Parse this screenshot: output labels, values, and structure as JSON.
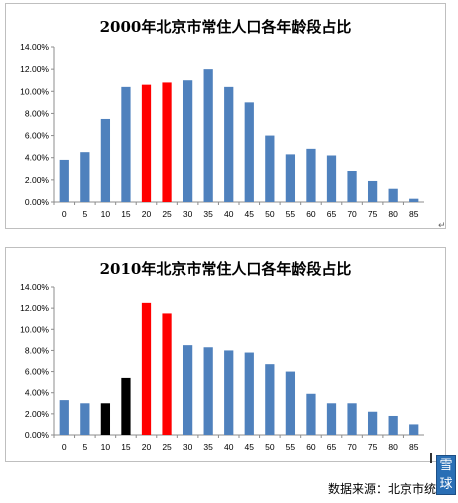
{
  "chart_data": [
    {
      "type": "bar",
      "title": "2000年北京市常住人口各年龄段占比",
      "categories": [
        "0",
        "5",
        "10",
        "15",
        "20",
        "25",
        "30",
        "35",
        "40",
        "45",
        "50",
        "55",
        "60",
        "65",
        "70",
        "75",
        "80",
        "85"
      ],
      "values": [
        3.8,
        4.5,
        7.5,
        10.4,
        10.6,
        10.8,
        11.0,
        12.0,
        10.4,
        9.0,
        6.0,
        4.3,
        4.8,
        4.2,
        2.8,
        1.9,
        1.2,
        0.3
      ],
      "bar_colors": [
        "#4f81bd",
        "#4f81bd",
        "#4f81bd",
        "#4f81bd",
        "#ff0000",
        "#ff0000",
        "#4f81bd",
        "#4f81bd",
        "#4f81bd",
        "#4f81bd",
        "#4f81bd",
        "#4f81bd",
        "#4f81bd",
        "#4f81bd",
        "#4f81bd",
        "#4f81bd",
        "#4f81bd",
        "#4f81bd"
      ],
      "y_ticks": [
        "0.00%",
        "2.00%",
        "4.00%",
        "6.00%",
        "8.00%",
        "10.00%",
        "12.00%",
        "14.00%"
      ],
      "ylim": [
        0,
        14
      ],
      "xlabel": "",
      "ylabel": "",
      "grid": false,
      "legend": "none"
    },
    {
      "type": "bar",
      "title": "2010年北京市常住人口各年龄段占比",
      "categories": [
        "0",
        "5",
        "10",
        "15",
        "20",
        "25",
        "30",
        "35",
        "40",
        "45",
        "50",
        "55",
        "60",
        "65",
        "70",
        "75",
        "80",
        "85"
      ],
      "values": [
        3.3,
        3.0,
        3.0,
        5.4,
        12.5,
        11.5,
        8.5,
        8.3,
        8.0,
        7.8,
        6.7,
        6.0,
        3.9,
        3.0,
        3.0,
        2.2,
        1.8,
        1.0
      ],
      "bar_colors": [
        "#4f81bd",
        "#4f81bd",
        "#000000",
        "#000000",
        "#ff0000",
        "#ff0000",
        "#4f81bd",
        "#4f81bd",
        "#4f81bd",
        "#4f81bd",
        "#4f81bd",
        "#4f81bd",
        "#4f81bd",
        "#4f81bd",
        "#4f81bd",
        "#4f81bd",
        "#4f81bd",
        "#4f81bd"
      ],
      "y_ticks": [
        "0.00%",
        "2.00%",
        "4.00%",
        "6.00%",
        "8.00%",
        "10.00%",
        "12.00%",
        "14.00%"
      ],
      "ylim": [
        0,
        14
      ],
      "xlabel": "",
      "ylabel": "",
      "grid": false,
      "legend": "none"
    }
  ],
  "source_text": "数据来源：北京市统计",
  "watermark_text": "雪球"
}
